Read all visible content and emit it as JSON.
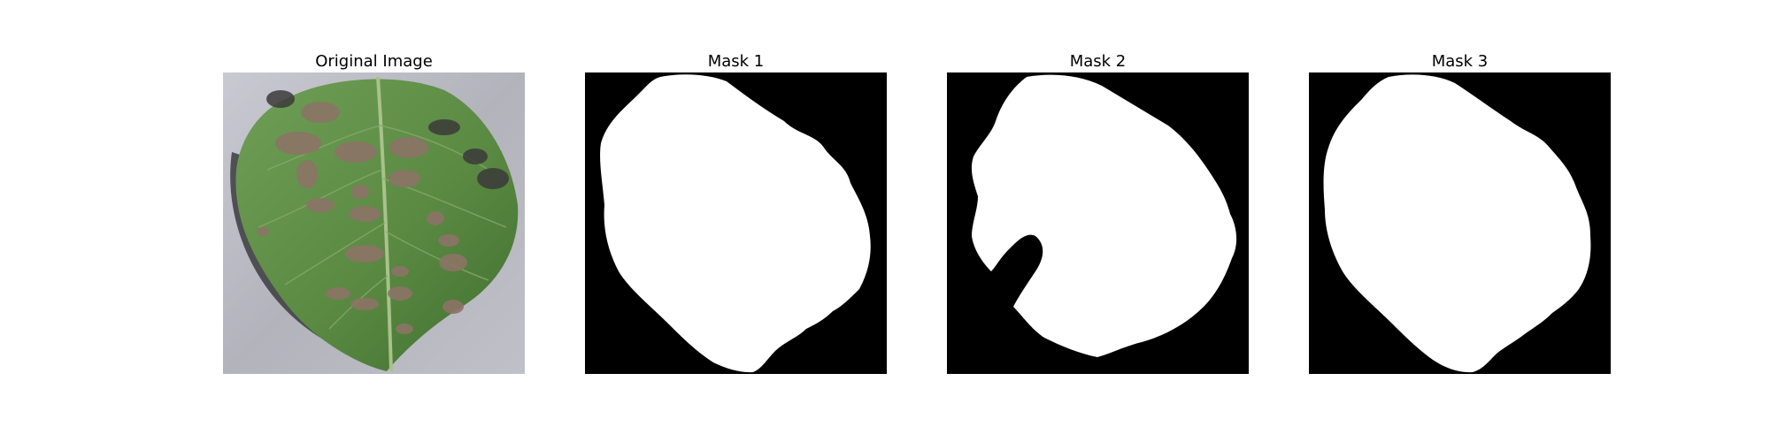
{
  "figure": {
    "panels": [
      {
        "title": "Original Image"
      },
      {
        "title": "Mask 1"
      },
      {
        "title": "Mask 2"
      },
      {
        "title": "Mask 3"
      }
    ]
  },
  "colors": {
    "mask_background": "#000000",
    "mask_foreground": "#ffffff",
    "leaf_green": "#5f8f45",
    "background_gray": "#b8b8c0"
  }
}
